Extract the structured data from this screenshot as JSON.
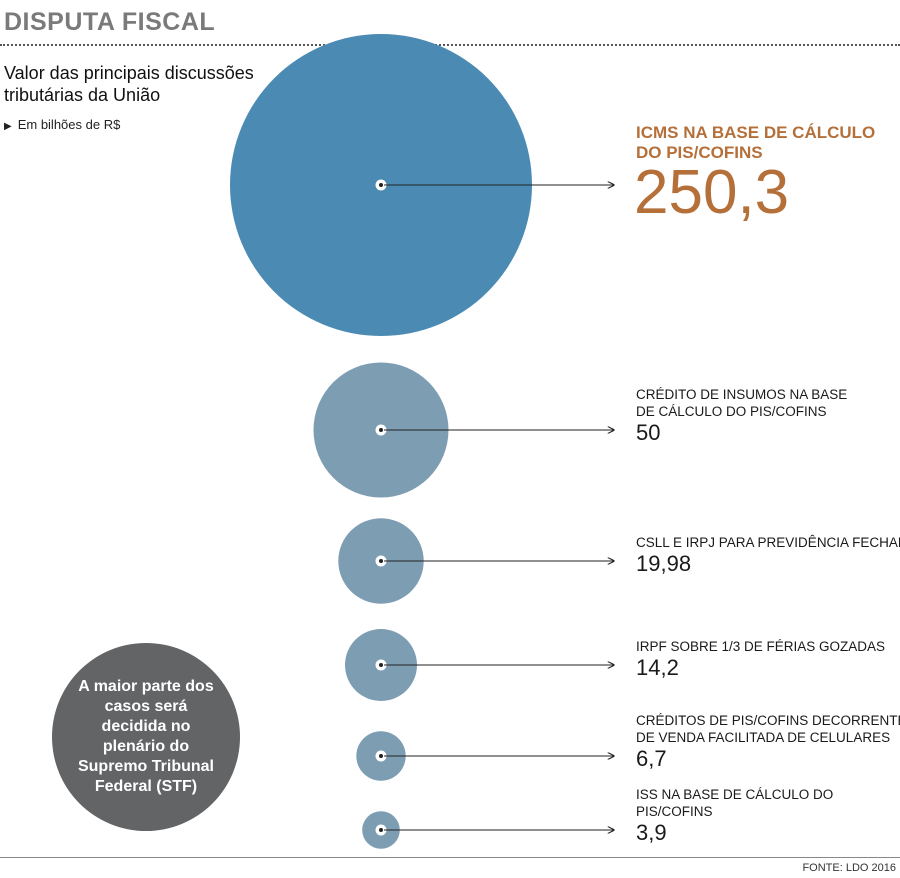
{
  "header": {
    "title": "DISPUTA FISCAL"
  },
  "subtitle": "Valor das principais discussões tributárias da União",
  "unit": "Em bilhões de R$",
  "callout": "A maior parte dos casos será decidida no plenário do Supremo Tribunal Federal (STF)",
  "source": "FONTE: LDO 2016",
  "colors": {
    "highlight_circle": "#4a8ab3",
    "circle": "#7d9db3",
    "highlight_text": "#b5703a",
    "text": "#1a1a1a",
    "callout_bg": "#636466"
  },
  "chart_data": {
    "type": "bubble",
    "title": "DISPUTA FISCAL",
    "subtitle": "Valor das principais discussões tributárias da União",
    "unit": "Em bilhões de R$",
    "items": [
      {
        "name": [
          "ICMS NA BASE DE CÁLCULO",
          "DO PIS/COFINS"
        ],
        "value": 250.3,
        "value_label": "250,3",
        "highlight": true
      },
      {
        "name": [
          "CRÉDITO DE INSUMOS NA BASE",
          "DE CÁLCULO DO PIS/COFINS"
        ],
        "value": 50,
        "value_label": "50",
        "highlight": false
      },
      {
        "name": [
          "CSLL E IRPJ PARA PREVIDÊNCIA FECHADA"
        ],
        "value": 19.98,
        "value_label": "19,98",
        "highlight": false
      },
      {
        "name": [
          "IRPF SOBRE 1/3 DE FÉRIAS GOZADAS"
        ],
        "value": 14.2,
        "value_label": "14,2",
        "highlight": false
      },
      {
        "name": [
          "CRÉDITOS DE PIS/COFINS DECORRENTES",
          "DE VENDA FACILITADA DE CELULARES"
        ],
        "value": 6.7,
        "value_label": "6,7",
        "highlight": false
      },
      {
        "name": [
          "ISS NA BASE DE CÁLCULO DO",
          "PIS/COFINS"
        ],
        "value": 3.9,
        "value_label": "3,9",
        "highlight": false
      }
    ]
  }
}
